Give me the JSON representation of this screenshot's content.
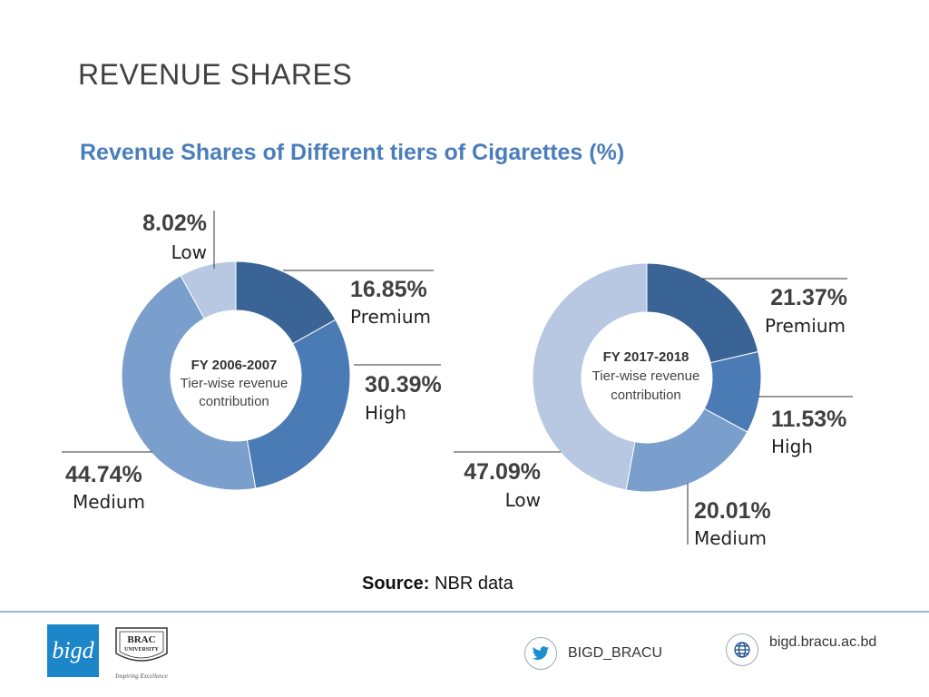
{
  "slide": {
    "title": "REVENUE SHARES",
    "subtitle": "Revenue Shares of Different tiers of Cigarettes (%)",
    "source_label": "Source:",
    "source_value": "NBR data"
  },
  "footer": {
    "twitter_handle": "BIGD_BRACU",
    "website": "bigd.bracu.ac.bd",
    "logo_bigd_text": "bigd",
    "logo_brac_line1": "BRAC",
    "logo_brac_line2": "UNIVERSITY",
    "logo_brac_tagline": "Inspiring Excellence"
  },
  "chart_data": [
    {
      "type": "pie",
      "center_title": "FY 2006-2007",
      "center_line1": "Tier-wise revenue",
      "center_line2": "contribution",
      "slices": [
        {
          "label": "Premium",
          "value": 16.85,
          "display": "16.85%",
          "color": "#3a6496"
        },
        {
          "label": "High",
          "value": 30.39,
          "display": "30.39%",
          "color": "#4a7bb5"
        },
        {
          "label": "Medium",
          "value": 44.74,
          "display": "44.74%",
          "color": "#7b9fcd"
        },
        {
          "label": "Low",
          "value": 8.02,
          "display": "8.02%",
          "color": "#b8c8e2"
        }
      ]
    },
    {
      "type": "pie",
      "center_title": "FY 2017-2018",
      "center_line1": "Tier-wise revenue",
      "center_line2": "contribution",
      "slices": [
        {
          "label": "Premium",
          "value": 21.37,
          "display": "21.37%",
          "color": "#3a6496"
        },
        {
          "label": "High",
          "value": 11.53,
          "display": "11.53%",
          "color": "#4a7bb5"
        },
        {
          "label": "Medium",
          "value": 20.01,
          "display": "20.01%",
          "color": "#7b9fcd"
        },
        {
          "label": "Low",
          "value": 47.09,
          "display": "47.09%",
          "color": "#b8c8e2"
        }
      ]
    }
  ]
}
